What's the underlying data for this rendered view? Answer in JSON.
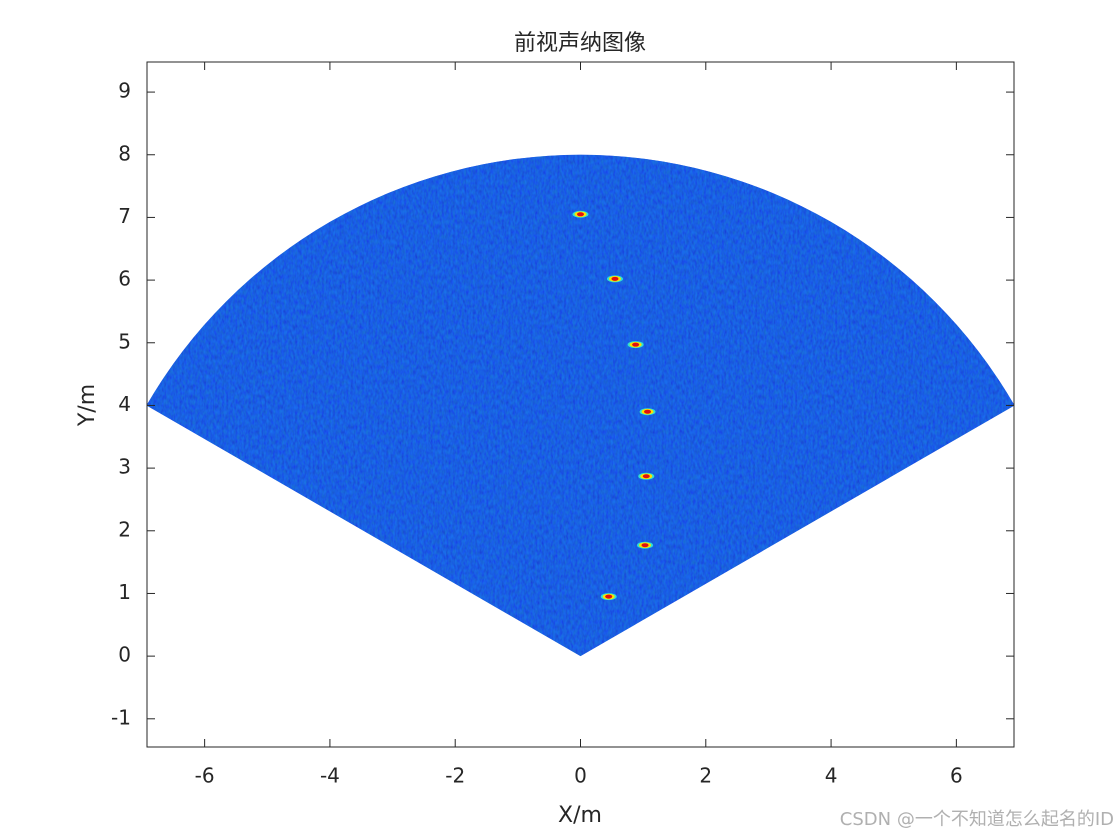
{
  "chart_data": {
    "type": "sector",
    "title": "前视声纳图像",
    "x_label": "X/m",
    "y_label": "Y/m",
    "xlim": [
      -6.92,
      6.92
    ],
    "ylim": [
      -1.45,
      9.48
    ],
    "xticks": [
      -6,
      -4,
      -2,
      0,
      2,
      4,
      6
    ],
    "yticks": [
      -1,
      0,
      1,
      2,
      3,
      4,
      5,
      6,
      7,
      8,
      9
    ],
    "sector": {
      "radius": 8,
      "angles": [
        30,
        150
      ],
      "color": "#0b2fd6"
    },
    "x": [
      0,
      0.55,
      0.88,
      1.07,
      1.05,
      1.03,
      0.45
    ],
    "values": [
      7.05,
      6.02,
      4.97,
      3.9,
      2.87,
      1.77,
      0.95
    ],
    "watermark": "CSDN @一个不知道怎么起名的ID"
  }
}
